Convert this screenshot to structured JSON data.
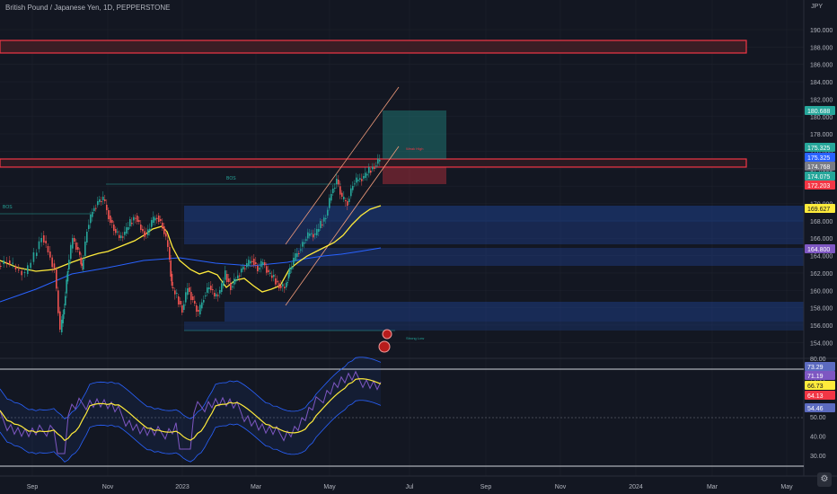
{
  "header": {
    "title": "British Pound / Japanese Yen, 1D, PEPPERSTONE",
    "currency": "JPY"
  },
  "price_axis": {
    "ticks": [
      "190.000",
      "188.000",
      "186.000",
      "184.000",
      "182.000",
      "180.000",
      "178.000",
      "176.000",
      "174.000",
      "172.000",
      "170.000",
      "168.000",
      "166.000",
      "164.000",
      "162.000",
      "160.000",
      "158.000",
      "156.000",
      "154.000"
    ],
    "labels": [
      {
        "text": "180.688",
        "color": "#26a69a"
      },
      {
        "text": "175.325",
        "color": "#26a69a"
      },
      {
        "text": "175.325",
        "color": "#2962ff"
      },
      {
        "text": "174.768",
        "color": "#787b86"
      },
      {
        "text": "174.075",
        "color": "#26a69a"
      },
      {
        "text": "172.203",
        "color": "#f23645"
      },
      {
        "text": "169.627",
        "color": "#ffeb3b"
      },
      {
        "text": "164.800",
        "color": "#7e57c2"
      }
    ]
  },
  "osc_axis": {
    "ticks": [
      "80.00",
      "70.00",
      "60.00",
      "50.00",
      "40.00",
      "30.00"
    ],
    "labels": [
      {
        "text": "73.29",
        "color": "#5c6bc0"
      },
      {
        "text": "71.19",
        "color": "#7e57c2"
      },
      {
        "text": "66.73",
        "color": "#ffeb3b"
      },
      {
        "text": "64.13",
        "color": "#f23645"
      },
      {
        "text": "54.46",
        "color": "#5c6bc0"
      }
    ]
  },
  "time_axis": [
    "Sep",
    "Nov",
    "2023",
    "Mar",
    "May",
    "Jul",
    "Sep",
    "Nov",
    "2024",
    "Mar",
    "May"
  ],
  "annotations": {
    "bos1": "BOS",
    "bos2": "BOS",
    "weak_high": "Weak High",
    "strong_low": "Strong Low"
  },
  "colors": {
    "bg": "#131722",
    "up": "#26a69a",
    "down": "#ef5350",
    "ma_fast": "#ffeb3b",
    "ma_slow": "#2962ff",
    "zone": "#1e3a7a",
    "resistance": "#f23645"
  },
  "icons": [
    "settings-icon"
  ]
}
